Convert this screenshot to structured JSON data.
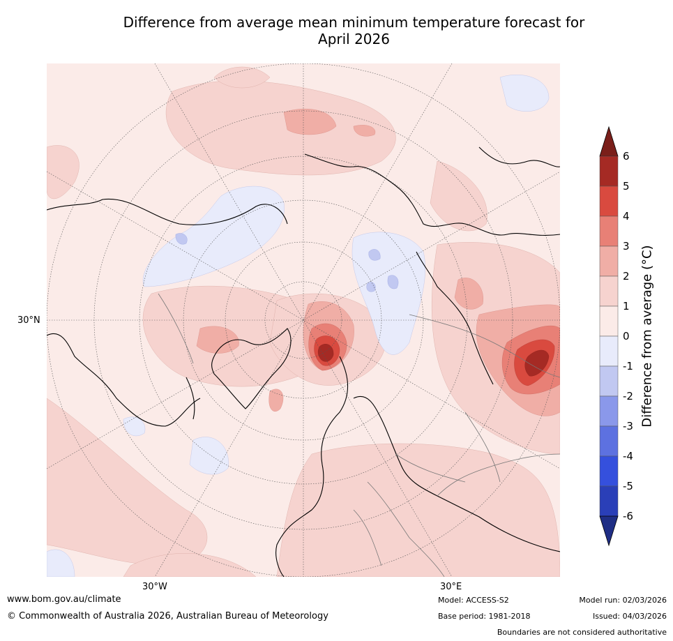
{
  "title_line1": "Difference from average mean minimum temperature forecast for",
  "title_line2": "April 2026",
  "lat_labels": [
    "30°N"
  ],
  "lon_labels": [
    "30°W",
    "30°E"
  ],
  "colorbar": {
    "label": "Difference from average (°C)",
    "ticks": [
      "6",
      "5",
      "4",
      "3",
      "2",
      "1",
      "0",
      "-1",
      "-2",
      "-3",
      "-4",
      "-5",
      "-6"
    ],
    "bins": [
      {
        "range": "5 to 6",
        "color": "#a52a24"
      },
      {
        "range": "4 to 5",
        "color": "#d94a3f"
      },
      {
        "range": "3 to 4",
        "color": "#e88076"
      },
      {
        "range": "2 to 3",
        "color": "#f0aea6"
      },
      {
        "range": "1 to 2",
        "color": "#f6d3cf"
      },
      {
        "range": "0 to 1",
        "color": "#fbebe8"
      },
      {
        "range": "-1 to 0",
        "color": "#e8ebfb"
      },
      {
        "range": "-2 to -1",
        "color": "#c1c8f1"
      },
      {
        "range": "-3 to -2",
        "color": "#8a98ea"
      },
      {
        "range": "-4 to -3",
        "color": "#5d71e0"
      },
      {
        "range": "-5 to -4",
        "color": "#3550dd"
      },
      {
        "range": "-6 to -5",
        "color": "#2a3fb8"
      }
    ],
    "over_color": "#7a1f1a",
    "under_color": "#1f2e85"
  },
  "footer": {
    "website": "www.bom.gov.au/climate",
    "copyright": "© Commonwealth of Australia 2026, Australian Bureau of Meteorology",
    "model": "Model: ACCESS-S2",
    "base_period": "Base period: 1981-2018",
    "model_run": "Model run: 02/03/2026",
    "issued": "Issued: 04/03/2026",
    "disclaimer": "Boundaries are not considered authoritative"
  }
}
